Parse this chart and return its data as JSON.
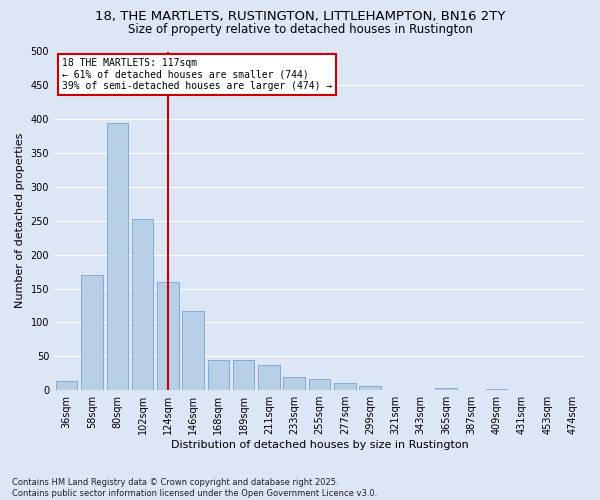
{
  "title1": "18, THE MARTLETS, RUSTINGTON, LITTLEHAMPTON, BN16 2TY",
  "title2": "Size of property relative to detached houses in Rustington",
  "xlabel": "Distribution of detached houses by size in Rustington",
  "ylabel": "Number of detached properties",
  "categories": [
    "36sqm",
    "58sqm",
    "80sqm",
    "102sqm",
    "124sqm",
    "146sqm",
    "168sqm",
    "189sqm",
    "211sqm",
    "233sqm",
    "255sqm",
    "277sqm",
    "299sqm",
    "321sqm",
    "343sqm",
    "365sqm",
    "387sqm",
    "409sqm",
    "431sqm",
    "453sqm",
    "474sqm"
  ],
  "values": [
    14,
    170,
    395,
    253,
    160,
    117,
    44,
    44,
    37,
    19,
    16,
    10,
    6,
    0,
    0,
    3,
    0,
    1,
    0,
    0,
    0
  ],
  "bar_color": "#b8cfe8",
  "bar_edgecolor": "#6699cc",
  "background_color": "#dce6f5",
  "grid_color": "#ffffff",
  "vline_x_index": 4,
  "vline_color": "#cc0000",
  "annotation_title": "18 THE MARTLETS: 117sqm",
  "annotation_line1": "← 61% of detached houses are smaller (744)",
  "annotation_line2": "39% of semi-detached houses are larger (474) →",
  "annotation_box_color": "#ffffff",
  "annotation_box_edgecolor": "#cc0000",
  "ylim": [
    0,
    500
  ],
  "yticks": [
    0,
    50,
    100,
    150,
    200,
    250,
    300,
    350,
    400,
    450,
    500
  ],
  "footnote1": "Contains HM Land Registry data © Crown copyright and database right 2025.",
  "footnote2": "Contains public sector information licensed under the Open Government Licence v3.0.",
  "title_fontsize": 9.5,
  "subtitle_fontsize": 8.5,
  "axis_label_fontsize": 8,
  "tick_fontsize": 7,
  "annotation_fontsize": 7,
  "footnote_fontsize": 6
}
